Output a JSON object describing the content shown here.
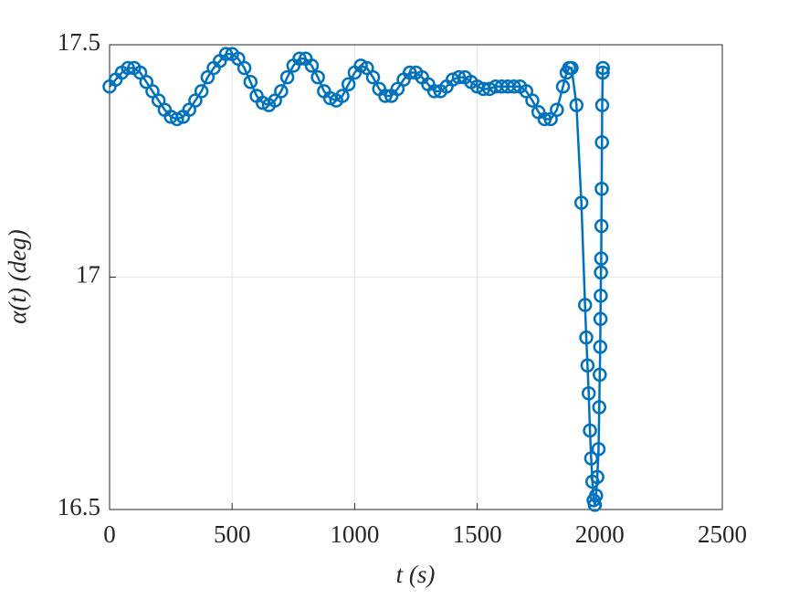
{
  "chart_data": {
    "type": "line",
    "xlabel": "t (s)",
    "ylabel": "α(t) (deg)",
    "x": [
      0,
      25,
      50,
      75,
      100,
      125,
      150,
      175,
      200,
      225,
      250,
      275,
      300,
      325,
      350,
      375,
      400,
      425,
      450,
      475,
      500,
      525,
      550,
      575,
      600,
      625,
      650,
      675,
      700,
      725,
      750,
      775,
      800,
      825,
      850,
      875,
      900,
      925,
      950,
      975,
      1000,
      1025,
      1050,
      1075,
      1100,
      1125,
      1150,
      1175,
      1200,
      1225,
      1250,
      1275,
      1300,
      1325,
      1350,
      1375,
      1400,
      1425,
      1450,
      1475,
      1500,
      1525,
      1550,
      1575,
      1600,
      1625,
      1650,
      1675,
      1700,
      1725,
      1750,
      1775,
      1800,
      1825,
      1850,
      1865,
      1875,
      1885,
      1905,
      1925,
      1940,
      1945,
      1950,
      1955,
      1960,
      1965,
      1970,
      1975,
      1980,
      1985,
      1990,
      1995,
      1998,
      2000,
      2002,
      2003,
      2004,
      2005,
      2006,
      2007,
      2008,
      2009,
      2010,
      2012,
      2013
    ],
    "series": [
      {
        "name": "alpha",
        "color": "#0072bd",
        "marker": "circle",
        "values": [
          17.41,
          17.425,
          17.44,
          17.45,
          17.45,
          17.44,
          17.42,
          17.4,
          17.38,
          17.36,
          17.345,
          17.34,
          17.345,
          17.36,
          17.38,
          17.4,
          17.43,
          17.45,
          17.465,
          17.48,
          17.48,
          17.47,
          17.45,
          17.42,
          17.39,
          17.375,
          17.37,
          17.38,
          17.4,
          17.43,
          17.455,
          17.47,
          17.47,
          17.455,
          17.43,
          17.4,
          17.385,
          17.38,
          17.39,
          17.415,
          17.44,
          17.455,
          17.45,
          17.43,
          17.405,
          17.39,
          17.39,
          17.405,
          17.425,
          17.44,
          17.44,
          17.43,
          17.415,
          17.4,
          17.4,
          17.41,
          17.425,
          17.43,
          17.43,
          17.42,
          17.41,
          17.405,
          17.405,
          17.41,
          17.41,
          17.41,
          17.41,
          17.41,
          17.4,
          17.38,
          17.355,
          17.34,
          17.34,
          17.36,
          17.41,
          17.44,
          17.45,
          17.45,
          17.37,
          17.16,
          16.94,
          16.87,
          16.81,
          16.75,
          16.67,
          16.61,
          16.56,
          16.52,
          16.51,
          16.53,
          16.57,
          16.63,
          16.72,
          16.79,
          16.85,
          16.91,
          16.96,
          17.01,
          17.04,
          17.11,
          17.19,
          17.29,
          17.37,
          17.44,
          17.45
        ]
      }
    ],
    "xlim": [
      0,
      2500
    ],
    "xticks": [
      0,
      500,
      1000,
      1500,
      2000,
      2500
    ],
    "ylim": [
      16.5,
      17.5
    ],
    "yticks": [
      16.5,
      17,
      17.5
    ],
    "grid": true
  }
}
